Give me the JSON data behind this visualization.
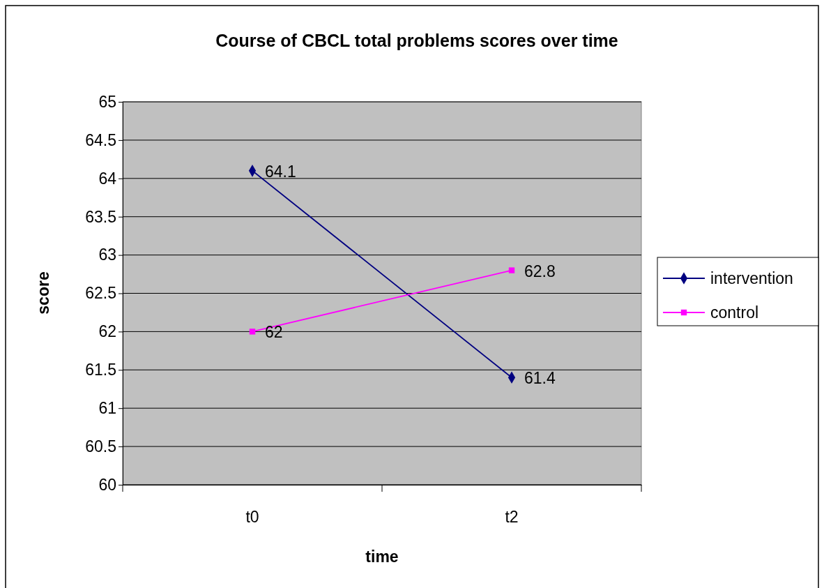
{
  "chart_data": {
    "type": "line",
    "title": "Course of CBCL total problems scores over time",
    "xlabel": "time",
    "ylabel": "score",
    "categories": [
      "t0",
      "t2"
    ],
    "series": [
      {
        "name": "intervention",
        "color": "#000080",
        "marker": "diamond",
        "values": [
          64.1,
          61.4
        ]
      },
      {
        "name": "control",
        "color": "#ff00ff",
        "marker": "square",
        "values": [
          62,
          62.8
        ]
      }
    ],
    "ylim": [
      60,
      65
    ],
    "yticks": [
      60,
      60.5,
      61,
      61.5,
      62,
      62.5,
      63,
      63.5,
      64,
      64.5,
      65
    ],
    "grid": "y",
    "legend": "right",
    "data_labels": true,
    "line_style": "solid"
  }
}
